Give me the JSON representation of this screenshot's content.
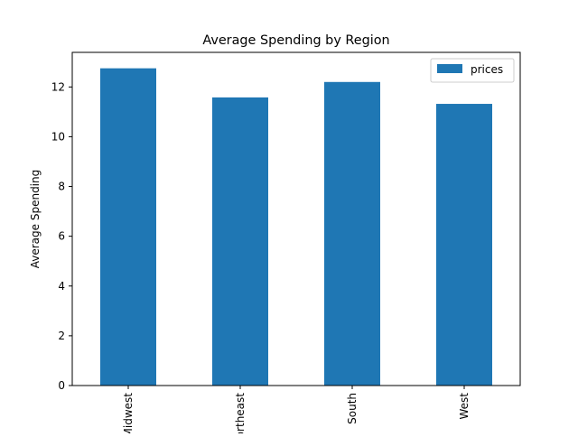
{
  "chart_data": {
    "type": "bar",
    "title": "Average Spending by Region",
    "xlabel": "",
    "ylabel": "Average Spending",
    "categories": [
      "Midwest",
      "Northeast",
      "South",
      "West"
    ],
    "series": [
      {
        "name": "prices",
        "values": [
          12.75,
          11.58,
          12.2,
          11.32
        ]
      }
    ],
    "ylim": [
      0,
      13.39
    ],
    "yticks": [
      0,
      2,
      4,
      6,
      8,
      10,
      12
    ],
    "grid": false,
    "legend_position": "upper right",
    "colors": {
      "bar": "#1f77b4"
    }
  }
}
